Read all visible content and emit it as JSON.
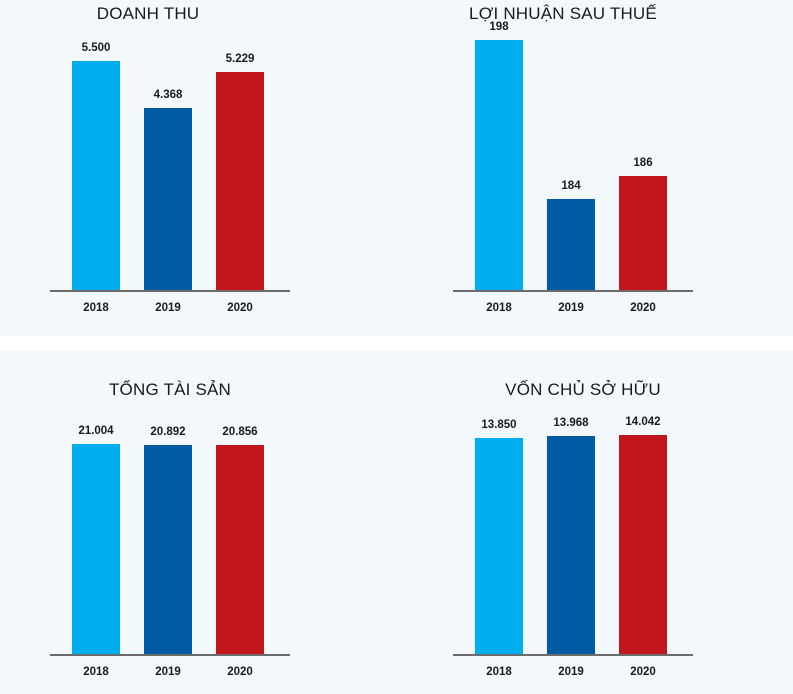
{
  "colors": {
    "2018": "#00aeef",
    "2019": "#005ba4",
    "2020": "#c1161c"
  },
  "chart_data": [
    {
      "type": "bar",
      "title": "DOANH THU",
      "categories": [
        "2018",
        "2019",
        "2020"
      ],
      "values": [
        5500,
        4368,
        5229
      ],
      "value_labels": [
        "5.500",
        "4.368",
        "5.229"
      ],
      "ylim": [
        0,
        6000
      ]
    },
    {
      "type": "bar",
      "title": "LỢI NHUẬN SAU THUẾ",
      "categories": [
        "2018",
        "2019",
        "2020"
      ],
      "values": [
        198,
        184,
        186
      ],
      "value_labels": [
        "198",
        "184",
        "186"
      ],
      "ylim": [
        176,
        198
      ]
    },
    {
      "type": "bar",
      "title": "TỔNG TÀI SẢN",
      "categories": [
        "2018",
        "2019",
        "2020"
      ],
      "values": [
        21004,
        20892,
        20856
      ],
      "value_labels": [
        "21.004",
        "20.892",
        "20.856"
      ],
      "ylim": [
        0,
        25000
      ]
    },
    {
      "type": "bar",
      "title": "VỐN CHỦ SỞ HỮU",
      "categories": [
        "2018",
        "2019",
        "2020"
      ],
      "values": [
        13850,
        13968,
        14042
      ],
      "value_labels": [
        "13.850",
        "13.968",
        "14.042"
      ],
      "ylim": [
        0,
        16000
      ]
    }
  ]
}
